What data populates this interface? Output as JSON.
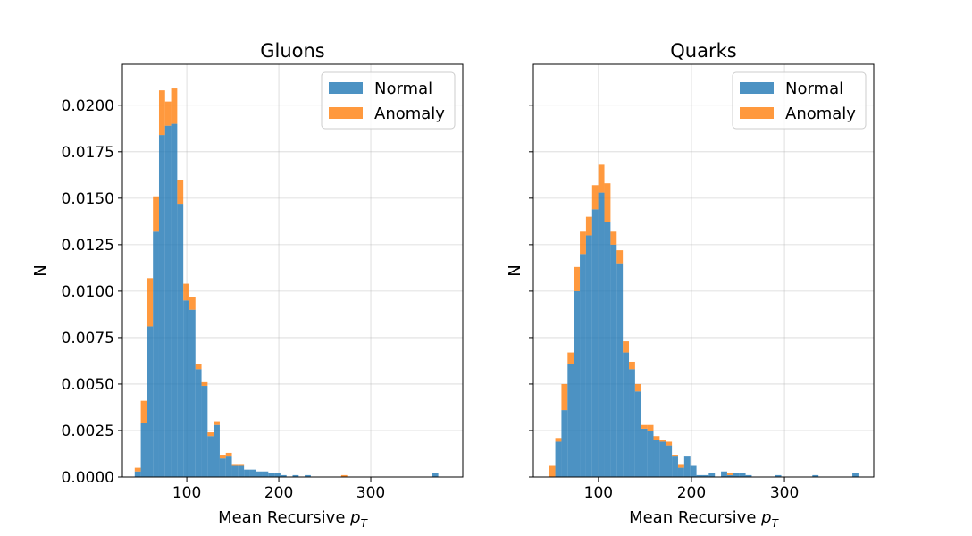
{
  "chart_data": [
    {
      "type": "bar",
      "subtype": "stacked-histogram",
      "title": "Gluons",
      "xlabel": "Mean Recursive p",
      "xlabel_sub": "T",
      "ylabel": "N",
      "xlim": [
        30,
        400
      ],
      "ylim": [
        0,
        0.0222
      ],
      "xticks": [
        100,
        200,
        300
      ],
      "xtick_labels": [
        "100",
        "200",
        "300"
      ],
      "yticks": [
        0,
        0.0025,
        0.005,
        0.0075,
        0.01,
        0.0125,
        0.015,
        0.0175,
        0.02
      ],
      "ytick_labels": [
        "0.0000",
        "0.0025",
        "0.0050",
        "0.0075",
        "0.0100",
        "0.0125",
        "0.0150",
        "0.0175",
        "0.0200"
      ],
      "grid": true,
      "legend_position": "top-right",
      "bin_width": 6.6,
      "bins": [
        [
          43.4,
          0.0003,
          0.0002
        ],
        [
          50.0,
          0.0029,
          0.0012
        ],
        [
          56.6,
          0.0081,
          0.0026
        ],
        [
          63.2,
          0.0132,
          0.0019
        ],
        [
          69.8,
          0.0184,
          0.0024
        ],
        [
          76.4,
          0.0189,
          0.0013
        ],
        [
          83.0,
          0.019,
          0.0019
        ],
        [
          89.6,
          0.0147,
          0.0013
        ],
        [
          96.2,
          0.0095,
          0.0009
        ],
        [
          102.8,
          0.009,
          0.0007
        ],
        [
          109.4,
          0.0058,
          0.0003
        ],
        [
          116.0,
          0.0049,
          0.0002
        ],
        [
          122.6,
          0.0022,
          0.0002
        ],
        [
          129.2,
          0.0028,
          0.0002
        ],
        [
          135.8,
          0.001,
          0.0002
        ],
        [
          142.4,
          0.0011,
          0.0002
        ],
        [
          149.0,
          0.0006,
          0.0001
        ],
        [
          155.6,
          0.0006,
          0.0001
        ],
        [
          162.2,
          0.0004,
          0.0
        ],
        [
          168.8,
          0.0004,
          0.0
        ],
        [
          175.4,
          0.0003,
          0.0
        ],
        [
          182.0,
          0.0003,
          0.0
        ],
        [
          188.6,
          0.0002,
          0.0
        ],
        [
          195.2,
          0.0002,
          0.0
        ],
        [
          201.8,
          0.0001,
          0.0
        ],
        [
          215.0,
          0.0001,
          0.0
        ],
        [
          228.2,
          0.0001,
          0.0
        ],
        [
          267.8,
          0.0,
          0.0001
        ],
        [
          366.8,
          0.0002,
          0.0
        ]
      ],
      "series": [
        {
          "name": "Normal",
          "color": "#1f77b4"
        },
        {
          "name": "Anomaly",
          "color": "#ff7f0e"
        }
      ]
    },
    {
      "type": "bar",
      "subtype": "stacked-histogram",
      "title": "Quarks",
      "xlabel": "Mean Recursive p",
      "xlabel_sub": "T",
      "ylabel": "N",
      "xlim": [
        30,
        396
      ],
      "ylim": [
        0,
        0.0222
      ],
      "xticks": [
        100,
        200,
        300
      ],
      "xtick_labels": [
        "100",
        "200",
        "300"
      ],
      "grid": true,
      "legend_position": "top-right",
      "bin_width": 6.6,
      "bins": [
        [
          47.0,
          0.0,
          0.0006
        ],
        [
          53.6,
          0.0019,
          0.0002
        ],
        [
          60.2,
          0.0036,
          0.0014
        ],
        [
          66.8,
          0.0061,
          0.0006
        ],
        [
          73.4,
          0.01,
          0.0013
        ],
        [
          80.0,
          0.012,
          0.0012
        ],
        [
          86.6,
          0.013,
          0.001
        ],
        [
          93.2,
          0.0144,
          0.0013
        ],
        [
          99.8,
          0.0153,
          0.0015
        ],
        [
          106.4,
          0.0137,
          0.0021
        ],
        [
          113.0,
          0.0125,
          0.0007
        ],
        [
          119.6,
          0.0115,
          0.0007
        ],
        [
          126.2,
          0.0067,
          0.0006
        ],
        [
          132.8,
          0.0058,
          0.0004
        ],
        [
          139.4,
          0.0046,
          0.0004
        ],
        [
          146.0,
          0.0026,
          0.0002
        ],
        [
          152.6,
          0.0025,
          0.0003
        ],
        [
          159.2,
          0.002,
          0.0002
        ],
        [
          165.8,
          0.0019,
          0.0001
        ],
        [
          172.4,
          0.0017,
          0.0002
        ],
        [
          179.0,
          0.0011,
          0.0001
        ],
        [
          185.6,
          0.0005,
          0.0002
        ],
        [
          192.2,
          0.0011,
          0.0
        ],
        [
          198.8,
          0.0006,
          0.0
        ],
        [
          205.4,
          0.0001,
          0.0
        ],
        [
          212.0,
          0.0001,
          0.0
        ],
        [
          218.6,
          0.0002,
          0.0
        ],
        [
          231.8,
          0.0003,
          0.0
        ],
        [
          238.4,
          0.0001,
          0.0001
        ],
        [
          245.0,
          0.0002,
          0.0
        ],
        [
          251.6,
          0.0002,
          0.0
        ],
        [
          258.2,
          0.0001,
          0.0
        ],
        [
          290.0,
          0.0001,
          0.0
        ],
        [
          330.0,
          0.0001,
          0.0
        ],
        [
          373.0,
          0.0002,
          0.0
        ]
      ],
      "series": [
        {
          "name": "Normal",
          "color": "#1f77b4"
        },
        {
          "name": "Anomaly",
          "color": "#ff7f0e"
        }
      ]
    }
  ]
}
